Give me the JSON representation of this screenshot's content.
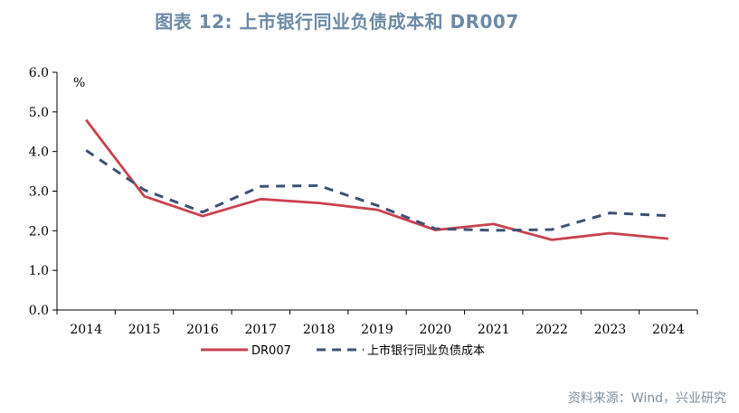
{
  "title": "图表 12: 上市银行同业负债成本和 DR007",
  "source": "资料来源：Wind，兴业研究",
  "colors": {
    "title": "#6c8aa6",
    "source": "#7f8f9f",
    "dr007": "#c8414f",
    "interbank": "#3d5272",
    "axis": "#000000"
  },
  "chart_data": {
    "type": "line",
    "unit_label": "%",
    "categories": [
      "2014",
      "2015",
      "2016",
      "2017",
      "2018",
      "2019",
      "2020",
      "2021",
      "2022",
      "2023",
      "2024"
    ],
    "ylim": [
      0,
      6
    ],
    "yticks": [
      "0.0",
      "1.0",
      "2.0",
      "3.0",
      "4.0",
      "5.0",
      "6.0"
    ],
    "grid": false,
    "legend_position": "bottom",
    "series": [
      {
        "name": "DR007",
        "style": "solid",
        "color": "#c8414f",
        "values": [
          4.8,
          2.87,
          2.37,
          2.8,
          2.7,
          2.53,
          2.02,
          2.17,
          1.77,
          1.94,
          1.8
        ]
      },
      {
        "name": "上市银行同业负债成本",
        "style": "dashed",
        "color": "#3d5272",
        "values": [
          4.03,
          3.03,
          2.47,
          3.12,
          3.14,
          2.64,
          2.05,
          2.01,
          2.03,
          2.45,
          2.38
        ]
      }
    ]
  }
}
